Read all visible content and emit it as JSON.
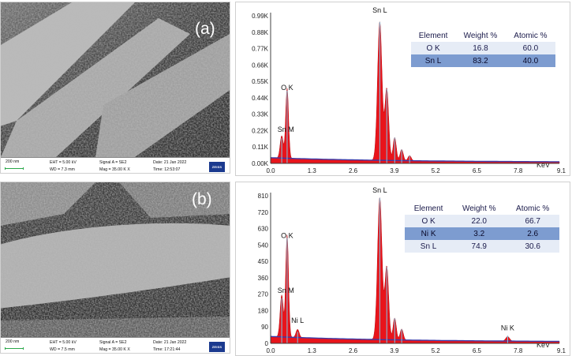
{
  "panel_a": {
    "label": "(a)",
    "sem_info": {
      "scale": "200 nm",
      "eht": "EHT =  5.00 kV",
      "wd": "WD =  7.3 mm",
      "signal": "Signal A = SE2",
      "mag": "Mag =  35.00 K X",
      "date": "Date: 21 Jan 2022",
      "time": "Time: 12:53:07",
      "logo": "ZEISS"
    },
    "table": {
      "headers": [
        "Element",
        "Weight %",
        "Atomic %"
      ],
      "rows": [
        [
          "O  K",
          "16.8",
          "60.0"
        ],
        [
          "Sn L",
          "83.2",
          "40.0"
        ]
      ]
    }
  },
  "panel_b": {
    "label": "(b)",
    "sem_info": {
      "scale": "200 nm",
      "eht": "EHT =  5.00 kV",
      "wd": "WD =  7.5 mm",
      "signal": "Signal A = SE2",
      "mag": "Mag =  35.00 K X",
      "date": "Date: 21 Jan 2022",
      "time": "Time: 17:21:44",
      "logo": "ZEISS"
    },
    "table": {
      "headers": [
        "Element",
        "Weight %",
        "Atomic %"
      ],
      "rows": [
        [
          "O  K",
          "22.0",
          "66.7"
        ],
        [
          "Ni K",
          "3.2",
          "2.6"
        ],
        [
          "Sn L",
          "74.9",
          "30.6"
        ]
      ]
    }
  },
  "colors": {
    "spectrum_fill": "#e8141b",
    "peak_line": "#7ec8e6",
    "background_line": "#3b3ba8",
    "axis": "#404040",
    "table_header": "#1a1a4a"
  },
  "chart_data": [
    {
      "type": "area",
      "xlabel": "KeV",
      "ylabel": "",
      "xlim": [
        0.0,
        9.1
      ],
      "ylim": [
        0,
        990
      ],
      "x_ticks": [
        "0.0",
        "1.3",
        "2.6",
        "3.9",
        "5.2",
        "6.5",
        "7.8",
        "9.1"
      ],
      "y_ticks": [
        "0.00K",
        "0.11K",
        "0.22K",
        "0.33K",
        "0.44K",
        "0.55K",
        "0.66K",
        "0.77K",
        "0.88K",
        "0.99K"
      ],
      "annotations": [
        {
          "text": "Sn L",
          "x": 3.44,
          "y": 990
        },
        {
          "text": "O  K",
          "x": 0.52,
          "y": 470
        },
        {
          "text": "Sn M",
          "x": 0.48,
          "y": 190
        }
      ],
      "peaks": [
        {
          "x": 0.35,
          "y": 150,
          "w": 0.05
        },
        {
          "x": 0.52,
          "y": 470,
          "w": 0.045
        },
        {
          "x": 3.44,
          "y": 930,
          "w": 0.07
        },
        {
          "x": 3.66,
          "y": 480,
          "w": 0.06
        },
        {
          "x": 3.91,
          "y": 155,
          "w": 0.05
        },
        {
          "x": 4.13,
          "y": 75,
          "w": 0.05
        },
        {
          "x": 4.38,
          "y": 35,
          "w": 0.05
        }
      ],
      "baseline": 30
    },
    {
      "type": "area",
      "xlabel": "KeV",
      "ylabel": "",
      "xlim": [
        0.0,
        9.1
      ],
      "ylim": [
        0,
        810
      ],
      "x_ticks": [
        "0.0",
        "1.3",
        "2.6",
        "3.9",
        "5.2",
        "6.5",
        "7.8",
        "9.1"
      ],
      "y_ticks": [
        "0",
        "90",
        "180",
        "270",
        "360",
        "450",
        "540",
        "630",
        "720",
        "810"
      ],
      "annotations": [
        {
          "text": "Sn L",
          "x": 3.44,
          "y": 810
        },
        {
          "text": "O  K",
          "x": 0.52,
          "y": 560
        },
        {
          "text": "Sn M",
          "x": 0.48,
          "y": 260
        },
        {
          "text": "Ni L",
          "x": 0.85,
          "y": 95
        },
        {
          "text": "Ni K",
          "x": 7.47,
          "y": 55
        }
      ],
      "peaks": [
        {
          "x": 0.35,
          "y": 230,
          "w": 0.05
        },
        {
          "x": 0.52,
          "y": 560,
          "w": 0.045
        },
        {
          "x": 0.85,
          "y": 45,
          "w": 0.05
        },
        {
          "x": 3.44,
          "y": 780,
          "w": 0.07
        },
        {
          "x": 3.66,
          "y": 400,
          "w": 0.06
        },
        {
          "x": 3.91,
          "y": 120,
          "w": 0.05
        },
        {
          "x": 4.13,
          "y": 60,
          "w": 0.05
        },
        {
          "x": 7.47,
          "y": 25,
          "w": 0.06
        }
      ],
      "baseline": 30
    }
  ]
}
